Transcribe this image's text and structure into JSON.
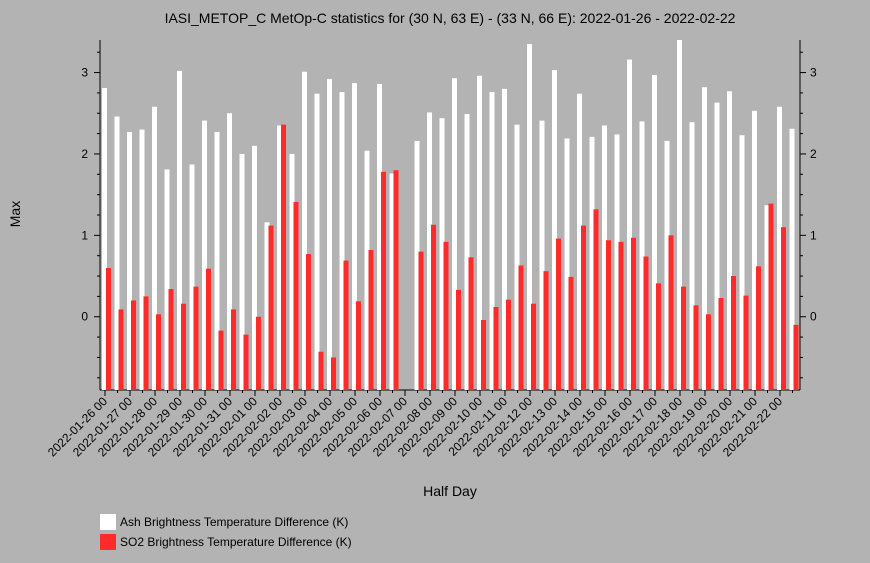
{
  "chart_data": {
    "type": "bar",
    "title": "IASI_METOP_C MetOp-C statistics for (30 N, 63 E) - (33 N, 66 E): 2022-01-26 - 2022-02-22",
    "xlabel": "Half Day",
    "ylabel": "Max",
    "ylim": [
      -0.9,
      3.4
    ],
    "yticks": [
      0,
      1,
      2,
      3
    ],
    "xtick_labels": [
      "2022-01-26 00",
      "2022-01-27 00",
      "2022-01-28 00",
      "2022-01-29 00",
      "2022-01-30 00",
      "2022-01-31 00",
      "2022-02-01 00",
      "2022-02-02 00",
      "2022-02-03 00",
      "2022-02-04 00",
      "2022-02-05 00",
      "2022-02-06 00",
      "2022-02-07 00",
      "2022-02-08 00",
      "2022-02-09 00",
      "2022-02-10 00",
      "2022-02-11 00",
      "2022-02-12 00",
      "2022-02-13 00",
      "2022-02-14 00",
      "2022-02-15 00",
      "2022-02-16 00",
      "2022-02-17 00",
      "2022-02-18 00",
      "2022-02-19 00",
      "2022-02-20 00",
      "2022-02-21 00",
      "2022-02-22 00"
    ],
    "categories": [
      "2022-01-26 00",
      "2022-01-26 12",
      "2022-01-27 00",
      "2022-01-27 12",
      "2022-01-28 00",
      "2022-01-28 12",
      "2022-01-29 00",
      "2022-01-29 12",
      "2022-01-30 00",
      "2022-01-30 12",
      "2022-01-31 00",
      "2022-01-31 12",
      "2022-02-01 00",
      "2022-02-01 12",
      "2022-02-02 00",
      "2022-02-02 12",
      "2022-02-03 00",
      "2022-02-03 12",
      "2022-02-04 00",
      "2022-02-04 12",
      "2022-02-05 00",
      "2022-02-05 12",
      "2022-02-06 00",
      "2022-02-06 12",
      "2022-02-07 00",
      "2022-02-07 12",
      "2022-02-08 00",
      "2022-02-08 12",
      "2022-02-09 00",
      "2022-02-09 12",
      "2022-02-10 00",
      "2022-02-10 12",
      "2022-02-11 00",
      "2022-02-11 12",
      "2022-02-12 00",
      "2022-02-12 12",
      "2022-02-13 00",
      "2022-02-13 12",
      "2022-02-14 00",
      "2022-02-14 12",
      "2022-02-15 00",
      "2022-02-15 12",
      "2022-02-16 00",
      "2022-02-16 12",
      "2022-02-17 00",
      "2022-02-17 12",
      "2022-02-18 00",
      "2022-02-18 12",
      "2022-02-19 00",
      "2022-02-19 12",
      "2022-02-20 00",
      "2022-02-20 12",
      "2022-02-21 00",
      "2022-02-21 12",
      "2022-02-22 00",
      "2022-02-22 12"
    ],
    "series": [
      {
        "name": "Ash Brightness Temperature Difference (K)",
        "color": "#ffffff",
        "values": [
          2.81,
          2.46,
          2.27,
          2.3,
          2.58,
          1.81,
          3.02,
          1.87,
          2.41,
          2.27,
          2.5,
          2.0,
          2.1,
          1.16,
          2.35,
          2.0,
          3.01,
          2.74,
          2.92,
          2.76,
          2.87,
          2.04,
          2.86,
          1.76,
          null,
          2.16,
          2.51,
          2.44,
          2.93,
          2.49,
          2.96,
          2.76,
          2.8,
          2.36,
          3.35,
          2.41,
          3.03,
          2.19,
          2.74,
          2.21,
          2.35,
          2.24,
          3.16,
          2.4,
          2.97,
          2.16,
          3.4,
          2.39,
          2.82,
          2.63,
          2.77,
          2.23,
          2.53,
          1.37,
          2.58,
          2.31
        ]
      },
      {
        "name": "SO2 Brightness Temperature Difference (K)",
        "color": "#ff2a2a",
        "values": [
          0.6,
          0.09,
          0.2,
          0.25,
          0.03,
          0.34,
          0.16,
          0.37,
          0.59,
          -0.17,
          0.09,
          -0.22,
          0.0,
          1.12,
          2.36,
          1.41,
          0.77,
          -0.43,
          -0.5,
          0.69,
          0.19,
          0.82,
          1.78,
          1.8,
          null,
          0.8,
          1.13,
          0.92,
          0.33,
          0.73,
          -0.04,
          0.12,
          0.21,
          0.63,
          0.16,
          0.56,
          0.96,
          0.49,
          1.12,
          1.32,
          0.94,
          0.92,
          0.97,
          0.74,
          0.41,
          1.0,
          0.37,
          0.14,
          0.03,
          0.23,
          0.5,
          0.26,
          0.62,
          1.39,
          1.1,
          -0.1
        ]
      }
    ],
    "legend_position": "bottom-left",
    "grid": false
  }
}
